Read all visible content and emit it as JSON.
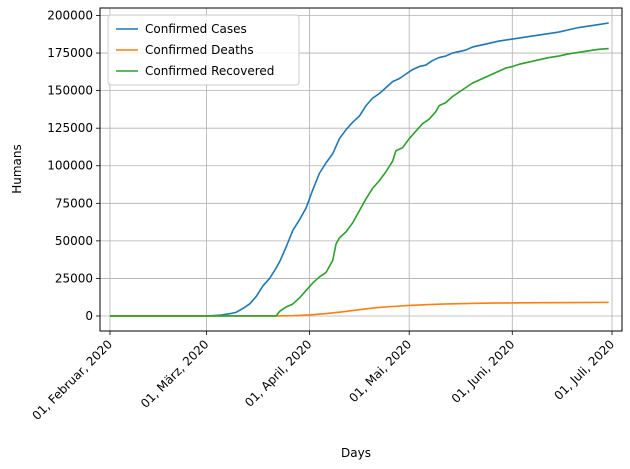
{
  "chart_data": {
    "type": "line",
    "title": "",
    "xlabel": "Days",
    "ylabel": "Humans",
    "x_ticks": [
      {
        "label": "01, Februar, 2020",
        "day": 0
      },
      {
        "label": "01, März, 2020",
        "day": 29
      },
      {
        "label": "01, April, 2020",
        "day": 60
      },
      {
        "label": "01, Mai, 2020",
        "day": 90
      },
      {
        "label": "01, Juni, 2020",
        "day": 121
      },
      {
        "label": "01, Juli, 2020",
        "day": 151
      }
    ],
    "y_ticks": [
      0,
      25000,
      50000,
      75000,
      100000,
      125000,
      150000,
      175000,
      200000
    ],
    "xlim": [
      "2020-01-29",
      "2020-07-04"
    ],
    "ylim": [
      -10000,
      205000
    ],
    "grid": true,
    "legend_position": "top-left",
    "series": [
      {
        "name": "Confirmed Cases",
        "color": "#1f77b4",
        "points": [
          [
            0,
            0
          ],
          [
            25,
            10
          ],
          [
            30,
            100
          ],
          [
            33,
            500
          ],
          [
            36,
            1500
          ],
          [
            38,
            2500
          ],
          [
            40,
            5000
          ],
          [
            42,
            8000
          ],
          [
            44,
            13000
          ],
          [
            46,
            20000
          ],
          [
            48,
            25000
          ],
          [
            50,
            32000
          ],
          [
            51,
            36000
          ],
          [
            53,
            46000
          ],
          [
            55,
            57000
          ],
          [
            57,
            64000
          ],
          [
            59,
            72000
          ],
          [
            61,
            84000
          ],
          [
            63,
            95000
          ],
          [
            65,
            102000
          ],
          [
            67,
            108000
          ],
          [
            69,
            118000
          ],
          [
            71,
            124000
          ],
          [
            73,
            129000
          ],
          [
            75,
            133000
          ],
          [
            77,
            140000
          ],
          [
            79,
            145000
          ],
          [
            81,
            148000
          ],
          [
            83,
            152000
          ],
          [
            85,
            156000
          ],
          [
            87,
            158000
          ],
          [
            89,
            161000
          ],
          [
            91,
            164000
          ],
          [
            93,
            166000
          ],
          [
            95,
            167000
          ],
          [
            97,
            170000
          ],
          [
            99,
            172000
          ],
          [
            101,
            173000
          ],
          [
            103,
            175000
          ],
          [
            105,
            176000
          ],
          [
            107,
            177000
          ],
          [
            109,
            179000
          ],
          [
            111,
            180000
          ],
          [
            113,
            181000
          ],
          [
            115,
            182000
          ],
          [
            117,
            183000
          ],
          [
            120,
            184000
          ],
          [
            123,
            185000
          ],
          [
            126,
            186000
          ],
          [
            129,
            187000
          ],
          [
            132,
            188000
          ],
          [
            135,
            189000
          ],
          [
            138,
            190500
          ],
          [
            141,
            192000
          ],
          [
            144,
            193000
          ],
          [
            147,
            194000
          ],
          [
            150,
            195000
          ]
        ]
      },
      {
        "name": "Confirmed Deaths",
        "color": "#ff7f0e",
        "points": [
          [
            0,
            0
          ],
          [
            50,
            50
          ],
          [
            55,
            200
          ],
          [
            60,
            700
          ],
          [
            65,
            1600
          ],
          [
            70,
            2800
          ],
          [
            75,
            4200
          ],
          [
            80,
            5500
          ],
          [
            85,
            6300
          ],
          [
            90,
            7000
          ],
          [
            95,
            7500
          ],
          [
            100,
            7900
          ],
          [
            105,
            8200
          ],
          [
            110,
            8400
          ],
          [
            115,
            8600
          ],
          [
            120,
            8700
          ],
          [
            130,
            8850
          ],
          [
            140,
            8950
          ],
          [
            150,
            9050
          ]
        ]
      },
      {
        "name": "Confirmed Recovered",
        "color": "#2ca02c",
        "points": [
          [
            0,
            0
          ],
          [
            50,
            0
          ],
          [
            51,
            3000
          ],
          [
            53,
            6000
          ],
          [
            55,
            8000
          ],
          [
            57,
            12000
          ],
          [
            59,
            17000
          ],
          [
            61,
            22000
          ],
          [
            63,
            26000
          ],
          [
            65,
            29000
          ],
          [
            67,
            37000
          ],
          [
            68,
            48000
          ],
          [
            69,
            52000
          ],
          [
            71,
            56000
          ],
          [
            73,
            62000
          ],
          [
            75,
            70000
          ],
          [
            77,
            78000
          ],
          [
            79,
            85000
          ],
          [
            81,
            90000
          ],
          [
            83,
            96000
          ],
          [
            85,
            103000
          ],
          [
            86,
            110000
          ],
          [
            88,
            112000
          ],
          [
            90,
            118000
          ],
          [
            92,
            123000
          ],
          [
            94,
            128000
          ],
          [
            96,
            131000
          ],
          [
            98,
            136000
          ],
          [
            99,
            140000
          ],
          [
            101,
            142000
          ],
          [
            103,
            146000
          ],
          [
            105,
            149000
          ],
          [
            107,
            152000
          ],
          [
            109,
            155000
          ],
          [
            111,
            157000
          ],
          [
            113,
            159000
          ],
          [
            115,
            161000
          ],
          [
            117,
            163000
          ],
          [
            119,
            165000
          ],
          [
            121,
            166000
          ],
          [
            123,
            167500
          ],
          [
            126,
            169000
          ],
          [
            129,
            170500
          ],
          [
            132,
            172000
          ],
          [
            135,
            173000
          ],
          [
            138,
            174500
          ],
          [
            141,
            175500
          ],
          [
            144,
            176500
          ],
          [
            147,
            177500
          ],
          [
            150,
            178000
          ]
        ]
      }
    ]
  }
}
